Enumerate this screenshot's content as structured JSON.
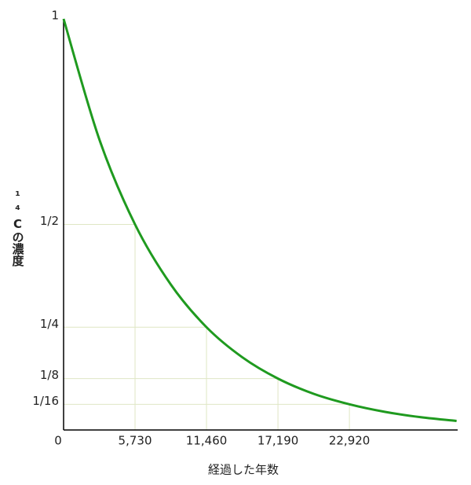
{
  "chart_data": {
    "type": "line",
    "x_label": "経過した年数",
    "y_label": "¹⁴Cの濃度",
    "x": [
      0,
      2865,
      5730,
      8595,
      11460,
      14325,
      17190,
      20055,
      22920,
      25785,
      28650,
      31515
    ],
    "series": [
      {
        "color": "#1f9a1f",
        "values": [
          1,
          0.707,
          0.5,
          0.354,
          0.25,
          0.177,
          0.125,
          0.088,
          0.0625,
          0.044,
          0.031,
          0.022
        ]
      }
    ],
    "xlim": [
      0,
      31600
    ],
    "ylim": [
      0,
      1
    ],
    "xticks": [
      0,
      {
        "value": 5730,
        "label": "5,730"
      },
      {
        "value": 11460,
        "label": "11,460"
      },
      {
        "value": 17190,
        "label": "17,190"
      },
      {
        "value": 22920,
        "label": "22,920"
      }
    ],
    "yticks": [
      1,
      {
        "value": 0.5,
        "label": "1/2"
      },
      {
        "value": 0.25,
        "label": "1/4"
      },
      {
        "value": 0.125,
        "label": "1/8"
      },
      {
        "value": 0.0625,
        "label": "1/16"
      }
    ],
    "grid": true
  }
}
